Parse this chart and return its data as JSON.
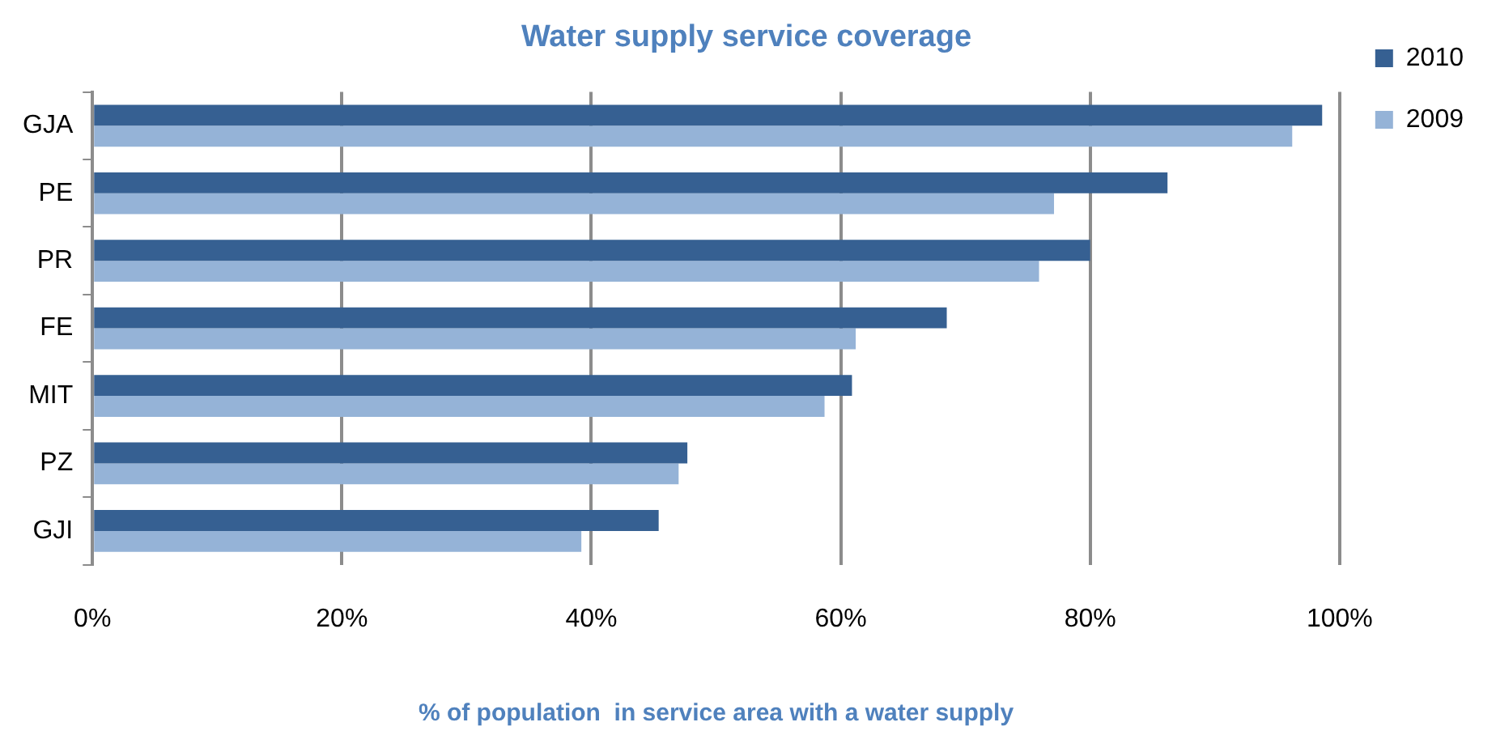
{
  "chart_data": {
    "type": "bar",
    "orientation": "horizontal",
    "title": "Water supply service coverage",
    "xlabel": "% of population  in service area with a water supply",
    "categories": [
      "GJA",
      "PE",
      "PR",
      "FE",
      "MIT",
      "PZ",
      "GJI"
    ],
    "series": [
      {
        "name": "2010",
        "color": "#366092",
        "values": [
          98.6,
          86.2,
          80.0,
          68.5,
          60.9,
          47.7,
          45.4
        ]
      },
      {
        "name": "2009",
        "color": "#95b3d7",
        "values": [
          96.2,
          77.1,
          75.9,
          61.2,
          58.7,
          47.0,
          39.2
        ]
      }
    ],
    "xlim": [
      0,
      100
    ],
    "xticks": [
      {
        "value": 0,
        "label": "0%"
      },
      {
        "value": 20,
        "label": "20%"
      },
      {
        "value": 40,
        "label": "40%"
      },
      {
        "value": 60,
        "label": "60%"
      },
      {
        "value": 80,
        "label": "80%"
      },
      {
        "value": 100,
        "label": "100%"
      }
    ],
    "grid": "x",
    "legend": "top right"
  }
}
